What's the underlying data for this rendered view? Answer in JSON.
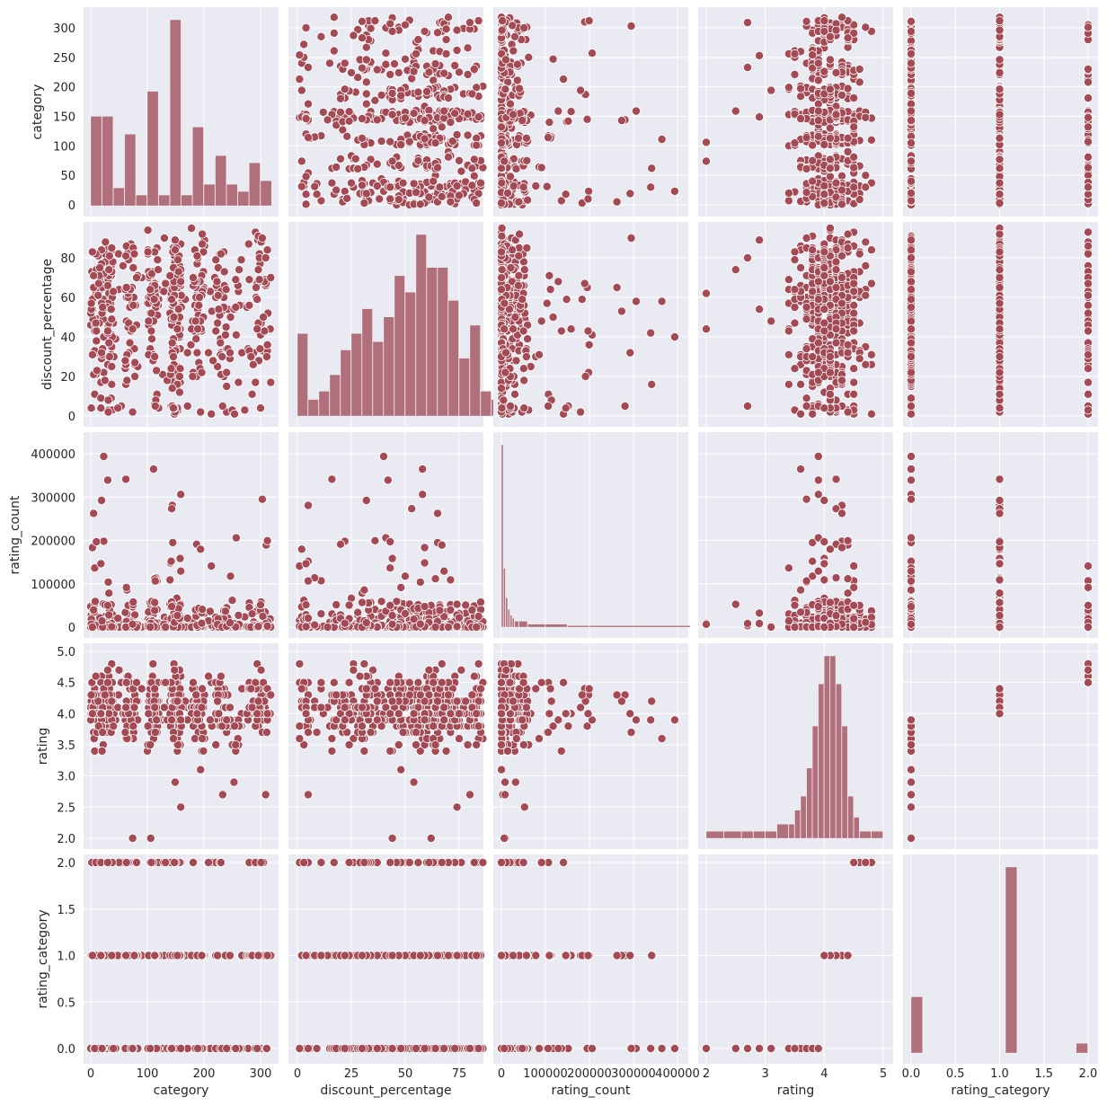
{
  "chart_data": {
    "type": "scatter",
    "layout": "pairplot",
    "variables": [
      "category",
      "discount_percentage",
      "rating_count",
      "rating",
      "rating_category"
    ],
    "colors": {
      "point": "#a34a55",
      "hist": "#b16f7c",
      "panel_bg": "#eaeaf2",
      "grid": "#ffffff"
    },
    "grid": true,
    "x_ticks": [
      [
        "0",
        "100",
        "200",
        "300"
      ],
      [
        "0",
        "25",
        "50",
        "75"
      ],
      [
        "0",
        "100000",
        "200000",
        "300000",
        "400000"
      ],
      [
        "2",
        "3",
        "4",
        "5"
      ],
      [
        "0.0",
        "0.5",
        "1.0",
        "1.5",
        "2.0"
      ]
    ],
    "y_ticks": [
      [
        "0",
        "50",
        "100",
        "150",
        "200",
        "250",
        "300"
      ],
      [
        "0",
        "20",
        "40",
        "60",
        "80"
      ],
      [
        "0",
        "100000",
        "200000",
        "300000",
        "400000"
      ],
      [
        "2.0",
        "2.5",
        "3.0",
        "3.5",
        "4.0",
        "4.5",
        "5.0"
      ],
      [
        "0.0",
        "0.5",
        "1.0",
        "1.5",
        "2.0"
      ]
    ],
    "diagonal_histograms": [
      {
        "variable": "category",
        "bin_edges": [
          0,
          20,
          40,
          60,
          80,
          100,
          120,
          140,
          160,
          180,
          200,
          220,
          240,
          260,
          280,
          300,
          320
        ],
        "counts": [
          25,
          25,
          5,
          20,
          3,
          32,
          3,
          52,
          3,
          22,
          6,
          14,
          6,
          4,
          12,
          7
        ]
      },
      {
        "variable": "discount_percentage",
        "bin_edges": [
          0,
          5,
          10,
          15,
          20,
          25,
          30,
          35,
          40,
          45,
          50,
          55,
          60,
          65,
          70,
          75,
          80,
          85,
          90,
          95
        ],
        "counts": [
          10,
          2,
          3,
          5,
          8,
          10,
          13,
          9,
          12,
          17,
          15,
          22,
          18,
          18,
          14,
          7,
          11,
          3,
          2
        ]
      },
      {
        "variable": "rating_count",
        "bin_edges": [
          0,
          5000,
          10000,
          15000,
          20000,
          25000,
          30000,
          40000,
          60000,
          100000,
          150000,
          200000,
          430000
        ],
        "counts": [
          62,
          20,
          10,
          6,
          4,
          3,
          2,
          2,
          1,
          1,
          0.5,
          0.5
        ]
      },
      {
        "variable": "rating",
        "bin_edges": [
          2.0,
          2.3,
          2.6,
          2.8,
          3.0,
          3.2,
          3.4,
          3.5,
          3.6,
          3.7,
          3.8,
          3.9,
          4.0,
          4.1,
          4.2,
          4.3,
          4.4,
          4.5,
          4.6,
          4.8,
          5.0
        ],
        "counts": [
          1,
          1,
          1,
          1,
          1,
          2,
          2,
          4,
          6,
          10,
          16,
          22,
          26,
          26,
          22,
          16,
          6,
          3,
          1,
          1
        ]
      },
      {
        "variable": "rating_category",
        "bin_edges": [
          0.0,
          0.1333,
          0.2667,
          0.4,
          0.5333,
          0.6667,
          0.8,
          0.9333,
          1.0667,
          1.2,
          1.3333,
          1.4667,
          1.6,
          1.7333,
          1.8667,
          2.0
        ],
        "counts": [
          29,
          0,
          0,
          0,
          0,
          0,
          0,
          0,
          96,
          0,
          0,
          0,
          0,
          0,
          5
        ]
      }
    ]
  },
  "axes": {
    "x_labels": [
      "category",
      "discount_percentage",
      "rating_count",
      "rating",
      "rating_category"
    ],
    "y_labels": [
      "category",
      "discount_percentage",
      "rating_count",
      "rating",
      "rating_category"
    ]
  }
}
